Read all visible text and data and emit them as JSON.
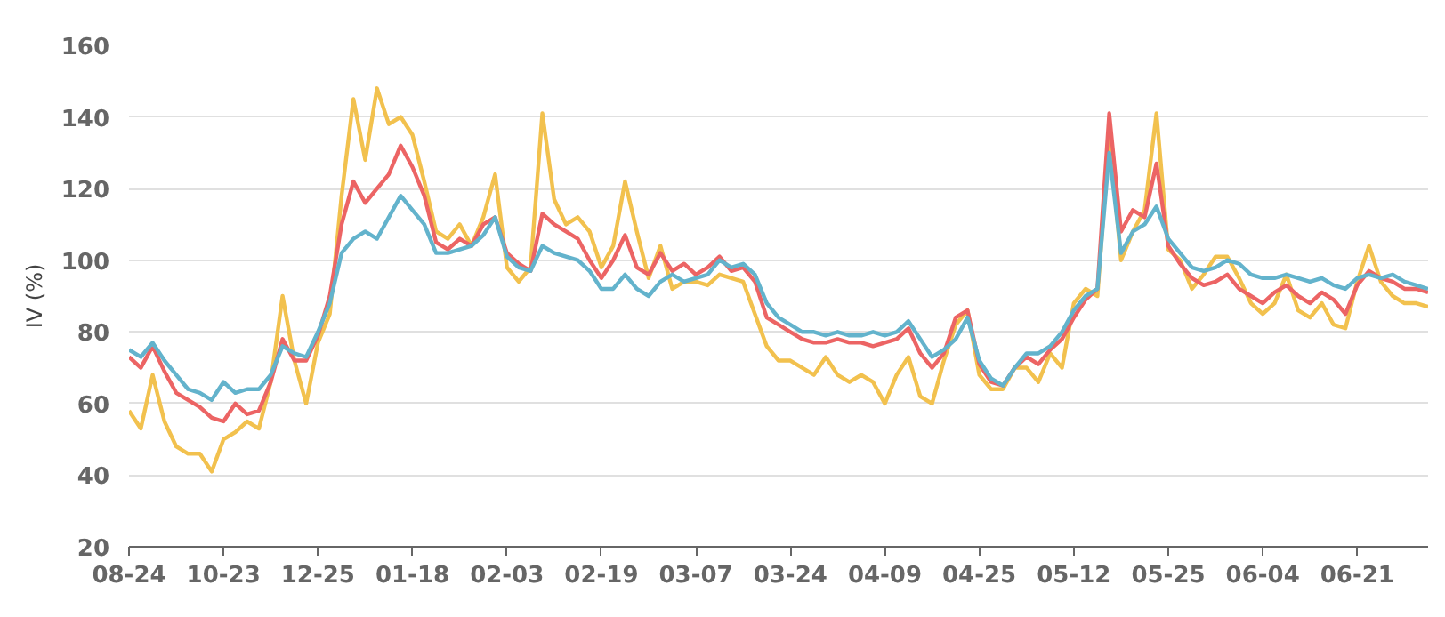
{
  "chart_data": {
    "type": "line",
    "ylabel": "IV (%)",
    "ylim": [
      20,
      160
    ],
    "yticks": [
      20,
      40,
      60,
      80,
      100,
      120,
      140,
      160
    ],
    "grid": "y",
    "marker": "none",
    "line_style": "solid",
    "categories": [
      "08-24",
      null,
      null,
      null,
      null,
      null,
      null,
      null,
      "10-23",
      null,
      null,
      null,
      null,
      null,
      null,
      null,
      "12-25",
      null,
      null,
      null,
      null,
      null,
      null,
      null,
      "01-18",
      null,
      null,
      null,
      null,
      null,
      null,
      null,
      "02-03",
      null,
      null,
      null,
      null,
      null,
      null,
      null,
      "02-19",
      null,
      null,
      null,
      null,
      null,
      null,
      null,
      "03-07",
      null,
      null,
      null,
      null,
      null,
      null,
      null,
      "03-24",
      null,
      null,
      null,
      null,
      null,
      null,
      null,
      "04-09",
      null,
      null,
      null,
      null,
      null,
      null,
      null,
      "04-25",
      null,
      null,
      null,
      null,
      null,
      null,
      null,
      "05-12",
      null,
      null,
      null,
      null,
      null,
      null,
      null,
      "05-25",
      null,
      null,
      null,
      null,
      null,
      null,
      null,
      "06-04",
      null,
      null,
      null,
      null,
      null,
      null,
      null,
      "06-21",
      null,
      null,
      null,
      null,
      null,
      null
    ],
    "series": [
      {
        "color": "#f2c14e",
        "values": [
          58,
          53,
          68,
          55,
          48,
          46,
          46,
          41,
          50,
          52,
          55,
          53,
          66,
          90,
          72,
          60,
          77,
          85,
          118,
          145,
          128,
          148,
          138,
          140,
          135,
          122,
          108,
          106,
          110,
          104,
          112,
          124,
          98,
          94,
          98,
          141,
          117,
          110,
          112,
          108,
          98,
          104,
          122,
          108,
          95,
          104,
          92,
          94,
          94,
          93,
          96,
          95,
          94,
          85,
          76,
          72,
          72,
          70,
          68,
          73,
          68,
          66,
          68,
          66,
          60,
          68,
          73,
          62,
          60,
          72,
          82,
          86,
          68,
          64,
          64,
          70,
          70,
          66,
          74,
          70,
          88,
          92,
          90,
          135,
          100,
          108,
          114,
          141,
          103,
          100,
          92,
          96,
          101,
          101,
          95,
          88,
          85,
          88,
          96,
          86,
          84,
          88,
          82,
          81,
          94,
          104,
          94,
          90,
          88,
          88,
          87
        ]
      },
      {
        "color": "#ec6464",
        "values": [
          73,
          70,
          76,
          69,
          63,
          61,
          59,
          56,
          55,
          60,
          57,
          58,
          66,
          78,
          72,
          72,
          79,
          90,
          110,
          122,
          116,
          120,
          124,
          132,
          126,
          118,
          105,
          103,
          106,
          104,
          110,
          112,
          102,
          99,
          97,
          113,
          110,
          108,
          106,
          100,
          95,
          100,
          107,
          98,
          96,
          102,
          97,
          99,
          96,
          98,
          101,
          97,
          98,
          94,
          84,
          82,
          80,
          78,
          77,
          77,
          78,
          77,
          77,
          76,
          77,
          78,
          81,
          74,
          70,
          74,
          84,
          86,
          71,
          66,
          65,
          70,
          73,
          71,
          75,
          78,
          84,
          89,
          92,
          141,
          108,
          114,
          112,
          127,
          104,
          99,
          95,
          93,
          94,
          96,
          92,
          90,
          88,
          91,
          93,
          90,
          88,
          91,
          89,
          85,
          93,
          97,
          95,
          94,
          92,
          92,
          91
        ]
      },
      {
        "color": "#63b3cc",
        "values": [
          75,
          73,
          77,
          72,
          68,
          64,
          63,
          61,
          66,
          63,
          64,
          64,
          68,
          76,
          74,
          73,
          80,
          88,
          102,
          106,
          108,
          106,
          112,
          118,
          114,
          110,
          102,
          102,
          103,
          104,
          107,
          112,
          101,
          98,
          97,
          104,
          102,
          101,
          100,
          97,
          92,
          92,
          96,
          92,
          90,
          94,
          96,
          94,
          95,
          96,
          100,
          98,
          99,
          96,
          88,
          84,
          82,
          80,
          80,
          79,
          80,
          79,
          79,
          80,
          79,
          80,
          83,
          78,
          73,
          75,
          78,
          84,
          72,
          67,
          65,
          70,
          74,
          74,
          76,
          80,
          86,
          90,
          92,
          130,
          102,
          108,
          110,
          115,
          106,
          102,
          98,
          97,
          98,
          100,
          99,
          96,
          95,
          95,
          96,
          95,
          94,
          95,
          93,
          92,
          95,
          96,
          95,
          96,
          94,
          93,
          92
        ]
      }
    ]
  }
}
